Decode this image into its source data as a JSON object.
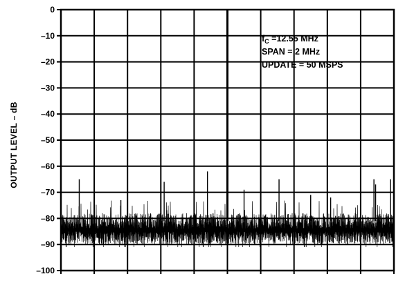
{
  "chart_data": {
    "type": "line",
    "title": "",
    "xlabel": "",
    "ylabel": "OUTPUT LEVEL – dB",
    "ylim": [
      -100,
      0
    ],
    "yticks": [
      0,
      -10,
      -20,
      -30,
      -40,
      -50,
      -60,
      -70,
      -80,
      -90,
      -100
    ],
    "ytick_labels": [
      "0",
      "–10",
      "–20",
      "–30",
      "–40",
      "–50",
      "–60",
      "–70",
      "–80",
      "–90",
      "–100"
    ],
    "xlim": [
      11.55,
      13.55
    ],
    "x_unit": "MHz",
    "grid": true,
    "legend": "none",
    "annotations": {
      "fc_prefix": "f",
      "fc_subscript": "C",
      "fc_value": " =12.55 MHz",
      "span": "SPAN = 2 MHz",
      "update": "UPDATE = 50 MSPS"
    },
    "series": [
      {
        "noise_floor_db": [
          -90,
          -77
        ],
        "x": [
          11.55,
          13.55
        ],
        "spurs": [
          {
            "x": 11.66,
            "y": -65
          },
          {
            "x": 11.91,
            "y": -73
          },
          {
            "x": 12.17,
            "y": -66
          },
          {
            "x": 12.43,
            "y": -62
          },
          {
            "x": 12.55,
            "y": 0
          },
          {
            "x": 12.65,
            "y": -69
          },
          {
            "x": 12.86,
            "y": -65
          },
          {
            "x": 13.05,
            "y": -71
          },
          {
            "x": 13.17,
            "y": -72
          },
          {
            "x": 13.43,
            "y": -65
          },
          {
            "x": 13.44,
            "y": -67
          },
          {
            "x": 13.53,
            "y": -65
          }
        ]
      }
    ]
  },
  "colors": {
    "trace": "#000000",
    "grid": "#000000",
    "background": "#ffffff"
  }
}
